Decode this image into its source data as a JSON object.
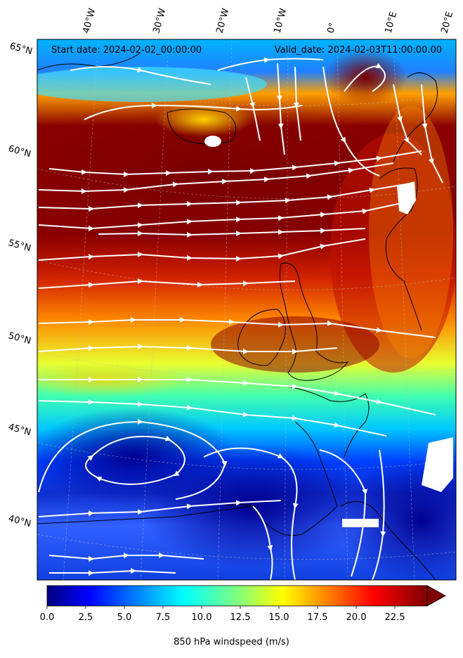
{
  "header": {
    "start_date": "Start date: 2024-02-02_00:00:00",
    "valid_date": "Valid_date: 2024-02-03T11:00:00.00"
  },
  "latitude_labels": [
    "65°N",
    "60°N",
    "55°N",
    "50°N",
    "45°N",
    "40°N"
  ],
  "longitude_labels": [
    "40°W",
    "30°W",
    "20°W",
    "10°W",
    "0°",
    "10°E",
    "20°E"
  ],
  "colorbar": {
    "title": "850 hPa windspeed (m/s)",
    "ticks": [
      "0.0",
      "2.5",
      "5.0",
      "7.5",
      "10.0",
      "12.5",
      "15.0",
      "17.5",
      "20.0",
      "22.5"
    ],
    "min": 0,
    "max": 25,
    "extend": "max",
    "colormap": "jet"
  },
  "colors": {
    "streamlines": "#ffffff",
    "coastline": "#000000"
  }
}
